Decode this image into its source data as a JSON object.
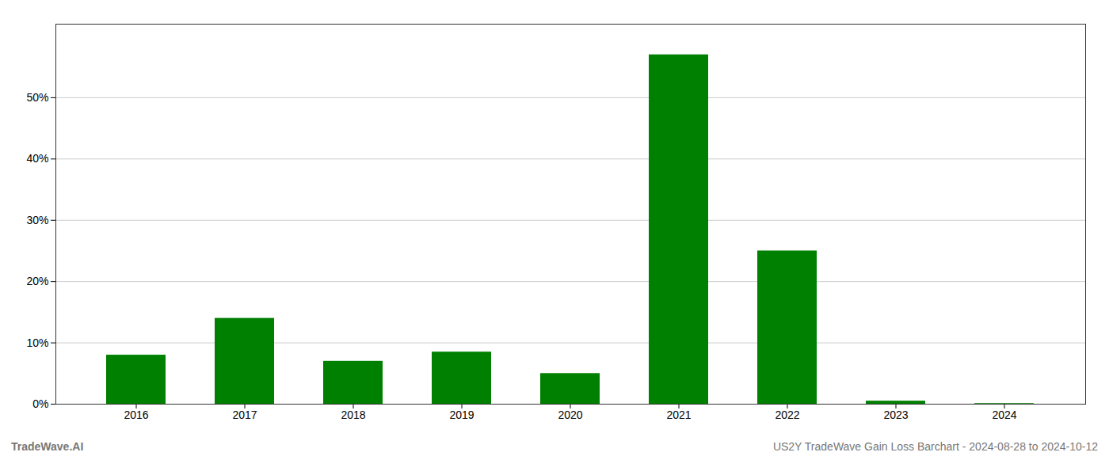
{
  "chart_data": {
    "type": "bar",
    "categories": [
      "2016",
      "2017",
      "2018",
      "2019",
      "2020",
      "2021",
      "2022",
      "2023",
      "2024"
    ],
    "values": [
      0.08,
      0.14,
      0.07,
      0.085,
      0.05,
      0.57,
      0.25,
      0.005,
      0.001
    ],
    "color": "#008000",
    "ylim": [
      0,
      0.62
    ],
    "yticks": [
      {
        "value": 0.0,
        "label": "0%"
      },
      {
        "value": 0.1,
        "label": "10%"
      },
      {
        "value": 0.2,
        "label": "20%"
      },
      {
        "value": 0.3,
        "label": "30%"
      },
      {
        "value": 0.4,
        "label": "40%"
      },
      {
        "value": 0.5,
        "label": "50%"
      }
    ],
    "grid": true,
    "annotations": [
      "TradeWave.AI",
      "US2Y TradeWave Gain Loss Barchart - 2024-08-28 to 2024-10-12"
    ]
  }
}
